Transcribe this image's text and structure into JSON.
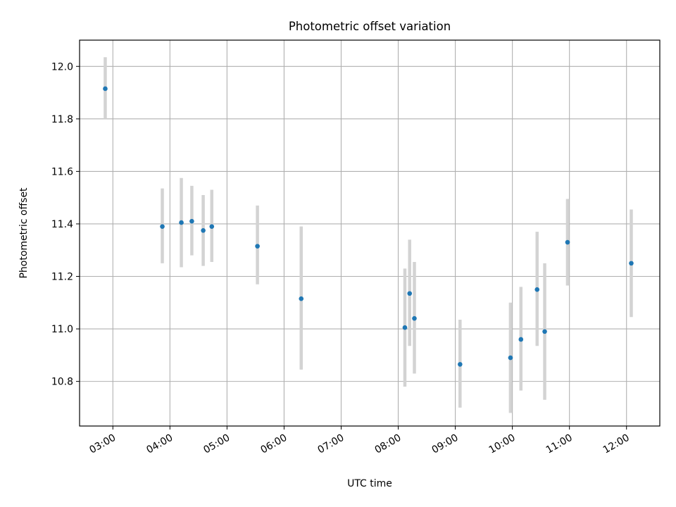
{
  "chart_data": {
    "type": "scatter",
    "title": "Photometric offset variation",
    "xlabel": "UTC time",
    "ylabel": "Photometric offset",
    "x_ticks": [
      "03:00",
      "04:00",
      "05:00",
      "06:00",
      "07:00",
      "08:00",
      "09:00",
      "10:00",
      "11:00",
      "12:00"
    ],
    "y_ticks": [
      "10.8",
      "11.0",
      "11.2",
      "11.4",
      "11.6",
      "11.8",
      "12.0"
    ],
    "xlim": [
      "02:25",
      "12:35"
    ],
    "ylim": [
      10.63,
      12.1
    ],
    "grid": true,
    "legend": "none",
    "colors": {
      "point": "#1f77b4",
      "errorbar": "#d3d3d3",
      "grid": "#b0b0b0"
    },
    "points": [
      {
        "x": "02:52",
        "y": 11.915,
        "err_low": 11.8,
        "err_high": 12.035
      },
      {
        "x": "03:52",
        "y": 11.39,
        "err_low": 11.25,
        "err_high": 11.535
      },
      {
        "x": "04:12",
        "y": 11.405,
        "err_low": 11.235,
        "err_high": 11.575
      },
      {
        "x": "04:23",
        "y": 11.41,
        "err_low": 11.28,
        "err_high": 11.545
      },
      {
        "x": "04:35",
        "y": 11.375,
        "err_low": 11.24,
        "err_high": 11.51
      },
      {
        "x": "04:44",
        "y": 11.39,
        "err_low": 11.255,
        "err_high": 11.53
      },
      {
        "x": "05:32",
        "y": 11.315,
        "err_low": 11.17,
        "err_high": 11.47
      },
      {
        "x": "06:18",
        "y": 11.115,
        "err_low": 10.845,
        "err_high": 11.39
      },
      {
        "x": "08:07",
        "y": 11.005,
        "err_low": 10.78,
        "err_high": 11.23
      },
      {
        "x": "08:12",
        "y": 11.135,
        "err_low": 10.935,
        "err_high": 11.34
      },
      {
        "x": "08:17",
        "y": 11.04,
        "err_low": 10.83,
        "err_high": 11.255
      },
      {
        "x": "09:05",
        "y": 10.865,
        "err_low": 10.7,
        "err_high": 11.035
      },
      {
        "x": "09:58",
        "y": 10.89,
        "err_low": 10.68,
        "err_high": 11.1
      },
      {
        "x": "10:09",
        "y": 10.96,
        "err_low": 10.765,
        "err_high": 11.16
      },
      {
        "x": "10:26",
        "y": 11.15,
        "err_low": 10.935,
        "err_high": 11.37
      },
      {
        "x": "10:34",
        "y": 10.99,
        "err_low": 10.73,
        "err_high": 11.25
      },
      {
        "x": "10:58",
        "y": 11.33,
        "err_low": 11.165,
        "err_high": 11.495
      },
      {
        "x": "12:05",
        "y": 11.25,
        "err_low": 11.045,
        "err_high": 11.455
      }
    ]
  }
}
